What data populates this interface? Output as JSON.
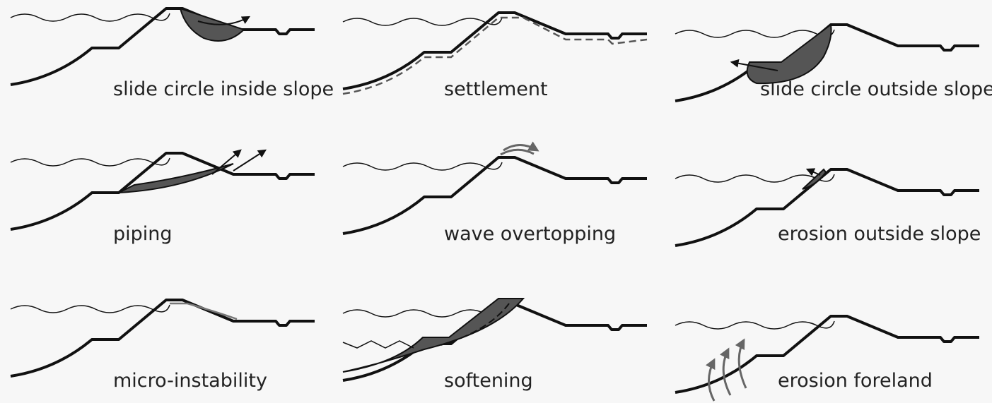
{
  "panels": [
    {
      "label": "slide circle inside slope"
    },
    {
      "label": "settlement"
    },
    {
      "label": "slide circle outside slope"
    },
    {
      "label": "piping"
    },
    {
      "label": "wave overtopping"
    },
    {
      "label": "erosion outside slope"
    },
    {
      "label": "micro-instability"
    },
    {
      "label": "softening"
    },
    {
      "label": "erosion foreland"
    }
  ]
}
